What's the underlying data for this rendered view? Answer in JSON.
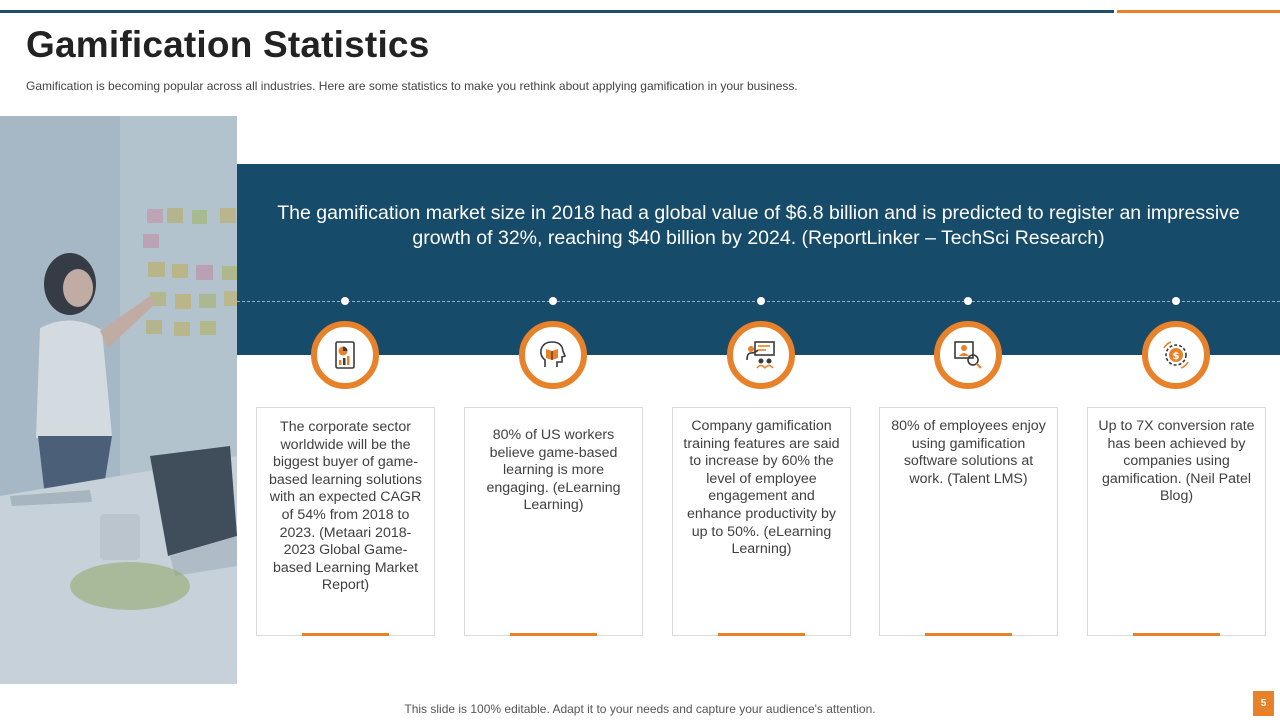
{
  "slide": {
    "title": "Gamification Statistics",
    "subtitle": "Gamification is becoming popular across all industries. Here are some statistics to make you rethink about applying gamification in your business.",
    "banner_text": "The gamification market size in 2018 had a global value of $6.8 billion and is predicted to register an impressive growth of 32%, reaching $40 billion by 2024. (ReportLinker – TechSci Research)",
    "footer": "This slide is 100% editable. Adapt it to your needs and capture your audience's attention.",
    "page_number": "5"
  },
  "colors": {
    "accent": "#e8822a",
    "banner": "#174b6a",
    "title": "#222222"
  },
  "stats": [
    {
      "icon": "report-chart-icon",
      "text": "The corporate sector worldwide will be the biggest buyer of game-based learning solutions with an expected CAGR of 54% from 2018 to 2023. (Metaari 2018-2023 Global Game-based Learning Market Report)"
    },
    {
      "icon": "head-book-icon",
      "text": "80% of US workers believe game-based learning is more engaging. (eLearning Learning)"
    },
    {
      "icon": "presentation-training-icon",
      "text": "Company gamification training features are said to increase by 60% the level of employee engagement and enhance productivity by up to 50%. (eLearning Learning)"
    },
    {
      "icon": "employee-search-icon",
      "text": "80% of employees enjoy using gamification software solutions at work. (Talent LMS)"
    },
    {
      "icon": "dollar-gear-icon",
      "text": "Up to 7X conversion rate has been achieved by companies using gamification. (Neil Patel Blog)"
    }
  ]
}
